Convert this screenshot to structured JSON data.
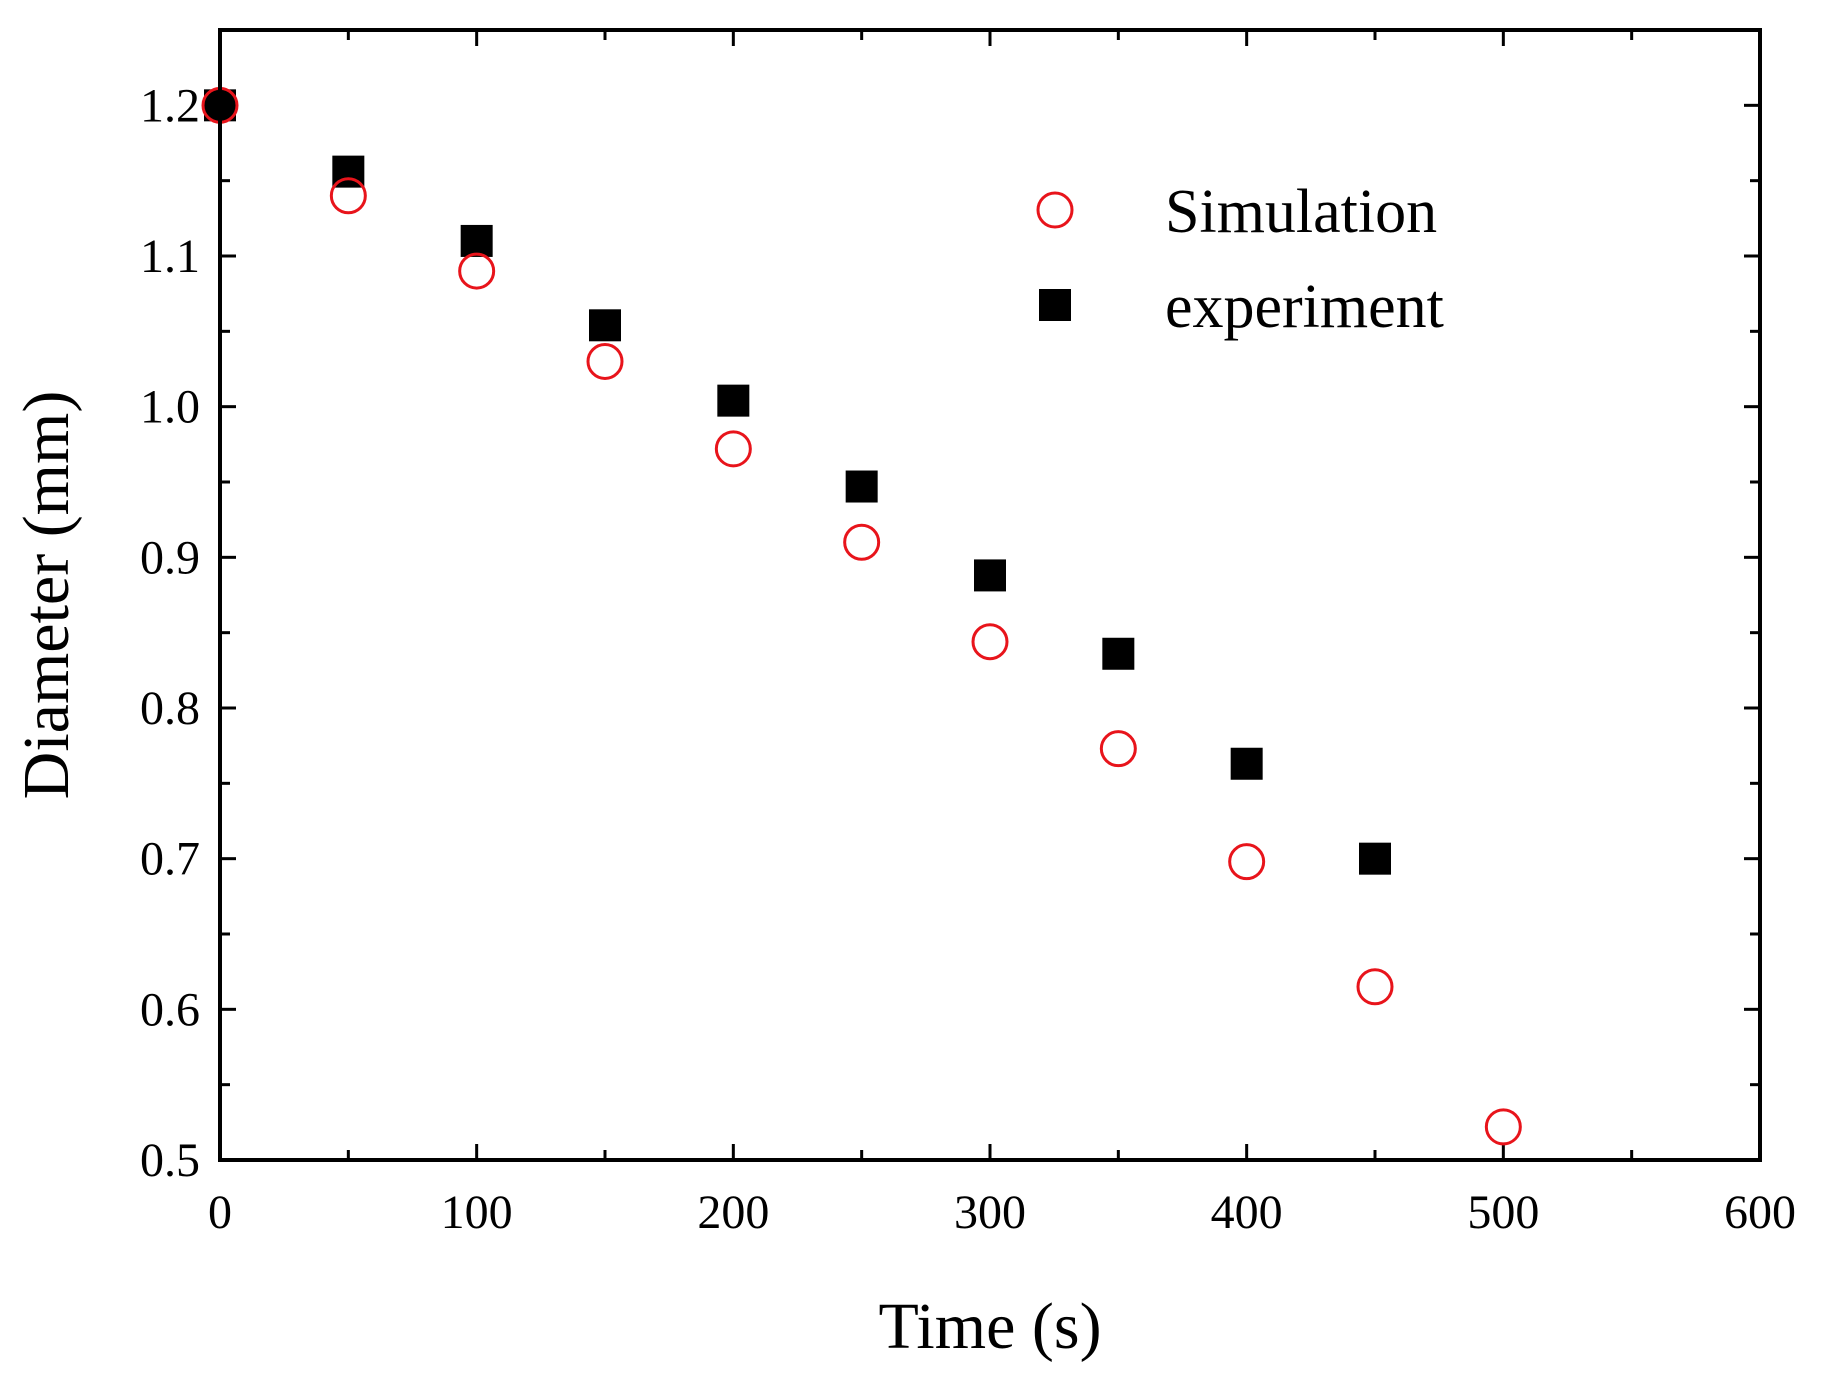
{
  "chart_data": {
    "type": "scatter",
    "title": "",
    "xlabel": "Time (s)",
    "ylabel": "Diameter (mm)",
    "xlim": [
      0,
      600
    ],
    "ylim": [
      0.5,
      1.25
    ],
    "x_ticks": [
      0,
      100,
      200,
      300,
      400,
      500,
      600
    ],
    "x_tick_labels": [
      "0",
      "100",
      "200",
      "300",
      "400",
      "500",
      "600"
    ],
    "y_ticks": [
      0.5,
      0.6,
      0.7,
      0.8,
      0.9,
      1.0,
      1.1,
      1.2
    ],
    "y_tick_labels": [
      "0.5",
      "0.6",
      "0.7",
      "0.8",
      "0.9",
      "1.0",
      "1.1",
      "1.2"
    ],
    "grid": false,
    "legend_position": "top-right",
    "series": [
      {
        "name": "Simulation",
        "marker": "open-circle",
        "color": "#e8141b",
        "x": [
          0,
          50,
          100,
          150,
          200,
          250,
          300,
          350,
          400,
          450,
          500
        ],
        "y": [
          1.2,
          1.14,
          1.09,
          1.03,
          0.972,
          0.91,
          0.844,
          0.773,
          0.698,
          0.615,
          0.522
        ]
      },
      {
        "name": "experiment",
        "marker": "filled-square",
        "color": "#000000",
        "x": [
          0,
          50,
          100,
          150,
          200,
          250,
          300,
          350,
          400,
          450
        ],
        "y": [
          1.2,
          1.156,
          1.11,
          1.054,
          1.004,
          0.947,
          0.888,
          0.836,
          0.763,
          0.7
        ]
      }
    ]
  }
}
